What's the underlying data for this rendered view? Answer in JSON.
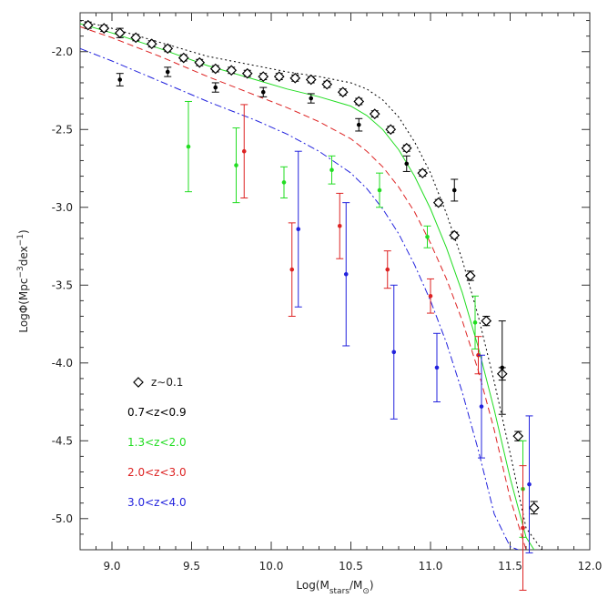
{
  "chart_data": {
    "type": "scatter",
    "title": "",
    "xlabel": {
      "main": "Log(M",
      "sub": "stars",
      "mid": "/M",
      "sub2": "⊙",
      "end": ")"
    },
    "ylabel": {
      "main": "LogΦ(Mpc",
      "sup": "−3",
      "mid": "dex",
      "sup2": "−1",
      "end": ")"
    },
    "xlim": [
      8.8,
      12.0
    ],
    "ylim": [
      -5.2,
      -1.75
    ],
    "xticks": [
      "9.0",
      "9.5",
      "10.0",
      "10.5",
      "11.0",
      "11.5",
      "12.0"
    ],
    "yticks": [
      "-2.0",
      "-2.5",
      "-3.0",
      "-3.5",
      "-4.0",
      "-4.5",
      "-5.0"
    ],
    "x_minor_step": 0.1,
    "y_minor_step": 0.1,
    "grid": false,
    "legend_position": "bottom-left",
    "series": [
      {
        "name": "z~0.1",
        "label": "z∼0.1",
        "color": "#000000",
        "marker": "diamond",
        "x": [
          8.85,
          8.95,
          9.05,
          9.15,
          9.25,
          9.35,
          9.45,
          9.55,
          9.65,
          9.75,
          9.85,
          9.95,
          10.05,
          10.15,
          10.25,
          10.35,
          10.45,
          10.55,
          10.65,
          10.75,
          10.85,
          10.95,
          11.05,
          11.15,
          11.25,
          11.35,
          11.45,
          11.55,
          11.65
        ],
        "y": [
          -1.83,
          -1.85,
          -1.88,
          -1.91,
          -1.95,
          -1.98,
          -2.04,
          -2.07,
          -2.11,
          -2.12,
          -2.14,
          -2.16,
          -2.16,
          -2.17,
          -2.18,
          -2.21,
          -2.26,
          -2.32,
          -2.4,
          -2.5,
          -2.62,
          -2.78,
          -2.97,
          -3.18,
          -3.44,
          -3.73,
          -4.07,
          -4.47,
          -4.93
        ],
        "err": [
          0.02,
          0.02,
          0.03,
          0.02,
          0.02,
          0.02,
          0.02,
          0.02,
          0.02,
          0.02,
          0.02,
          0.02,
          0.02,
          0.02,
          0.02,
          0.02,
          0.02,
          0.02,
          0.02,
          0.02,
          0.02,
          0.02,
          0.02,
          0.02,
          0.03,
          0.03,
          0.04,
          0.03,
          0.04
        ]
      },
      {
        "name": "0.7<z<0.9",
        "label": "0.7<z<0.9",
        "color": "#000000",
        "marker": "dot",
        "x": [
          9.05,
          9.35,
          9.65,
          9.95,
          10.25,
          10.55,
          10.85,
          11.15,
          11.45
        ],
        "y": [
          -2.18,
          -2.13,
          -2.23,
          -2.26,
          -2.3,
          -2.47,
          -2.72,
          -2.89,
          -4.03
        ],
        "err": [
          0.04,
          0.03,
          0.03,
          0.03,
          0.03,
          0.04,
          0.05,
          0.07,
          0.3
        ]
      },
      {
        "name": "1.3<z<2.0",
        "label": "1.3<z<2.0",
        "color": "#22dd22",
        "marker": "dot",
        "x": [
          9.48,
          9.78,
          10.08,
          10.38,
          10.68,
          10.98,
          11.28,
          11.58
        ],
        "y": [
          -2.61,
          -2.73,
          -2.84,
          -2.76,
          -2.89,
          -3.19,
          -3.74,
          -4.81
        ],
        "err": [
          0.29,
          0.24,
          0.1,
          0.09,
          0.11,
          0.07,
          0.17,
          0.31
        ]
      },
      {
        "name": "2.0<z<3.0",
        "label": "2.0<z<3.0",
        "color": "#dd2222",
        "marker": "dot",
        "x": [
          9.83,
          10.13,
          10.43,
          10.73,
          11.0,
          11.3,
          11.58
        ],
        "y": [
          -2.64,
          -3.4,
          -3.12,
          -3.4,
          -3.57,
          -3.95,
          -5.06
        ],
        "err": [
          0.3,
          0.3,
          0.21,
          0.12,
          0.11,
          0.12,
          0.4
        ]
      },
      {
        "name": "3.0<z<4.0",
        "label": "3.0<z<4.0",
        "color": "#2222dd",
        "marker": "dot",
        "x": [
          10.17,
          10.47,
          10.77,
          11.04,
          11.32,
          11.62
        ],
        "y": [
          -3.14,
          -3.43,
          -3.93,
          -4.03,
          -4.28,
          -4.78
        ],
        "err": [
          0.5,
          0.46,
          0.43,
          0.22,
          0.33,
          0.44
        ]
      }
    ],
    "curves": [
      {
        "name": "z~0.1 fit",
        "color": "#000000",
        "dash": "2,3",
        "x": [
          8.8,
          9.0,
          9.3,
          9.6,
          9.9,
          10.1,
          10.3,
          10.5,
          10.6,
          10.7,
          10.8,
          10.9,
          11.0,
          11.1,
          11.2,
          11.3,
          11.4,
          11.5,
          11.6,
          11.7
        ],
        "y": [
          -1.8,
          -1.85,
          -1.94,
          -2.03,
          -2.09,
          -2.13,
          -2.16,
          -2.2,
          -2.24,
          -2.31,
          -2.42,
          -2.58,
          -2.78,
          -3.04,
          -3.34,
          -3.7,
          -4.12,
          -4.58,
          -5.06,
          -5.2
        ]
      },
      {
        "name": "1.3<z<2.0 fit",
        "color": "#22dd22",
        "dash": "",
        "x": [
          8.8,
          9.0,
          9.3,
          9.6,
          9.9,
          10.1,
          10.3,
          10.5,
          10.6,
          10.7,
          10.8,
          10.9,
          11.0,
          11.1,
          11.2,
          11.3,
          11.4,
          11.5,
          11.6,
          11.65
        ],
        "y": [
          -1.82,
          -1.88,
          -1.98,
          -2.09,
          -2.18,
          -2.24,
          -2.29,
          -2.35,
          -2.41,
          -2.5,
          -2.63,
          -2.8,
          -3.01,
          -3.26,
          -3.55,
          -3.9,
          -4.3,
          -4.74,
          -5.12,
          -5.2
        ]
      },
      {
        "name": "2.0<z<3.0 fit",
        "color": "#dd2222",
        "dash": "7,4",
        "x": [
          8.8,
          9.0,
          9.3,
          9.6,
          9.9,
          10.1,
          10.3,
          10.5,
          10.6,
          10.7,
          10.8,
          10.9,
          11.0,
          11.1,
          11.2,
          11.3,
          11.4,
          11.5,
          11.6
        ],
        "y": [
          -1.84,
          -1.91,
          -2.03,
          -2.16,
          -2.28,
          -2.36,
          -2.45,
          -2.56,
          -2.64,
          -2.74,
          -2.87,
          -3.03,
          -3.23,
          -3.46,
          -3.73,
          -4.05,
          -4.43,
          -4.87,
          -5.2
        ]
      },
      {
        "name": "3.0<z<4.0 fit",
        "color": "#2222dd",
        "dash": "8,3,2,3",
        "x": [
          8.8,
          9.0,
          9.3,
          9.6,
          9.9,
          10.1,
          10.3,
          10.5,
          10.6,
          10.7,
          10.8,
          10.9,
          11.0,
          11.1,
          11.2,
          11.3,
          11.4,
          11.5,
          11.55
        ],
        "y": [
          -1.98,
          -2.06,
          -2.19,
          -2.32,
          -2.44,
          -2.53,
          -2.64,
          -2.78,
          -2.88,
          -3.01,
          -3.17,
          -3.37,
          -3.6,
          -3.87,
          -4.19,
          -4.56,
          -4.97,
          -5.18,
          -5.2
        ]
      }
    ]
  }
}
